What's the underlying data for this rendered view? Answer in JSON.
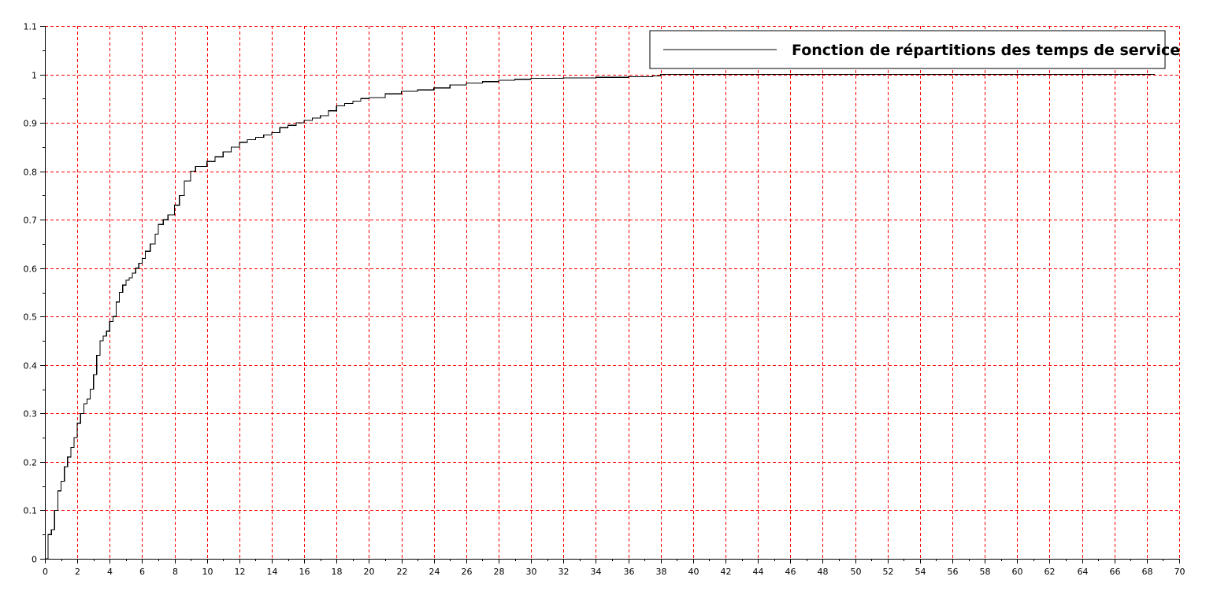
{
  "chart_data": {
    "type": "line",
    "title": "",
    "xlabel": "",
    "ylabel": "",
    "xlim": [
      0,
      70
    ],
    "ylim": [
      0,
      1.1
    ],
    "xticks": [
      0,
      2,
      4,
      6,
      8,
      10,
      12,
      14,
      16,
      18,
      20,
      22,
      24,
      26,
      28,
      30,
      32,
      34,
      36,
      38,
      40,
      42,
      44,
      46,
      48,
      50,
      52,
      54,
      56,
      58,
      60,
      62,
      64,
      66,
      68,
      70
    ],
    "yticks": [
      0,
      0.1,
      0.2,
      0.3,
      0.4,
      0.5,
      0.6,
      0.7,
      0.8,
      0.9,
      1,
      1.1
    ],
    "ytick_labels": [
      "0",
      "0.1",
      "0.2",
      "0.3",
      "0.4",
      "0.5",
      "0.6",
      "0.7",
      "0.8",
      "0.9",
      "1",
      "1.1"
    ],
    "grid": true,
    "grid_color": "#ff0000",
    "line_color": "#000000",
    "legend_position": "top-right",
    "series": [
      {
        "name": "Fonction de répartitions des temps de service",
        "step": true,
        "x": [
          0,
          0.2,
          0.4,
          0.6,
          0.8,
          1.0,
          1.2,
          1.4,
          1.6,
          1.8,
          2.0,
          2.2,
          2.4,
          2.6,
          2.8,
          3.0,
          3.2,
          3.4,
          3.6,
          3.8,
          4.0,
          4.2,
          4.4,
          4.6,
          4.8,
          5.0,
          5.2,
          5.4,
          5.6,
          5.8,
          6.0,
          6.2,
          6.5,
          6.8,
          7.0,
          7.3,
          7.6,
          8.0,
          8.3,
          8.6,
          9.0,
          9.3,
          9.6,
          10.0,
          10.5,
          11.0,
          11.5,
          12.0,
          12.5,
          13.0,
          13.5,
          14.0,
          14.5,
          15.0,
          15.5,
          16.0,
          16.5,
          17.0,
          17.5,
          18.0,
          18.5,
          19.0,
          19.5,
          20.0,
          21.0,
          22.0,
          23.0,
          24.0,
          25.0,
          26.0,
          27.0,
          28.0,
          29.0,
          30.0,
          32.0,
          34.0,
          36.0,
          37.5,
          38.0,
          50.0,
          60.0,
          68.5
        ],
        "y": [
          0.0,
          0.05,
          0.06,
          0.1,
          0.14,
          0.16,
          0.19,
          0.21,
          0.23,
          0.25,
          0.28,
          0.3,
          0.32,
          0.33,
          0.35,
          0.38,
          0.42,
          0.45,
          0.46,
          0.47,
          0.49,
          0.5,
          0.53,
          0.55,
          0.565,
          0.575,
          0.58,
          0.59,
          0.6,
          0.61,
          0.62,
          0.635,
          0.65,
          0.67,
          0.69,
          0.7,
          0.71,
          0.73,
          0.75,
          0.78,
          0.8,
          0.81,
          0.81,
          0.82,
          0.83,
          0.84,
          0.85,
          0.86,
          0.865,
          0.87,
          0.875,
          0.88,
          0.89,
          0.895,
          0.9,
          0.905,
          0.91,
          0.915,
          0.925,
          0.935,
          0.94,
          0.945,
          0.95,
          0.952,
          0.96,
          0.965,
          0.968,
          0.972,
          0.978,
          0.982,
          0.985,
          0.988,
          0.99,
          0.992,
          0.993,
          0.994,
          0.995,
          0.997,
          1.0,
          1.0,
          1.0,
          1.0
        ]
      }
    ]
  }
}
